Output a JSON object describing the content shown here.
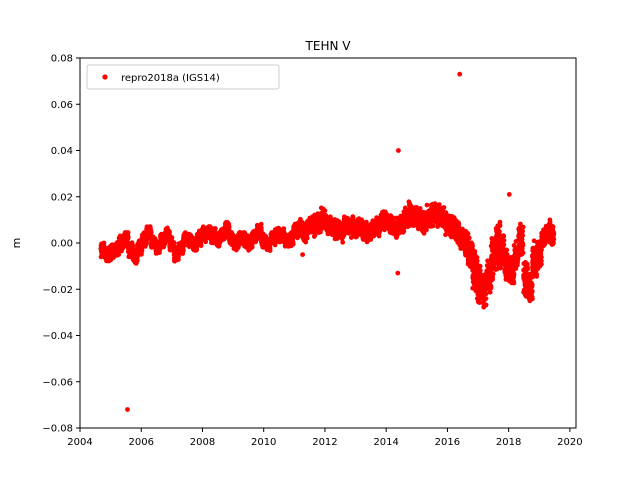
{
  "chart_data": {
    "type": "scatter",
    "title": "TEHN V",
    "xlabel": "",
    "ylabel": "m",
    "xlim": [
      2004.0,
      2020.2
    ],
    "ylim": [
      -0.08,
      0.08
    ],
    "x_ticks": [
      2004,
      2006,
      2008,
      2010,
      2012,
      2014,
      2016,
      2018,
      2020
    ],
    "y_ticks": [
      -0.08,
      -0.06,
      -0.04,
      -0.02,
      0.0,
      0.02,
      0.04,
      0.06,
      0.08
    ],
    "y_tick_labels": [
      "−0.08",
      "−0.06",
      "−0.04",
      "−0.02",
      "0.00",
      "0.02",
      "0.04",
      "0.06",
      "0.08"
    ],
    "grid": false,
    "legend_position": "top-left",
    "series": [
      {
        "name": "repro2018a (IGS14)",
        "color": "#ff0000",
        "marker": "circle",
        "x": [
          2004.75,
          2004.9,
          2005.05,
          2005.2,
          2005.35,
          2005.5,
          2005.65,
          2005.8,
          2005.95,
          2006.1,
          2006.25,
          2006.4,
          2006.55,
          2006.7,
          2006.85,
          2007.0,
          2007.15,
          2007.3,
          2007.45,
          2007.6,
          2007.75,
          2007.9,
          2008.05,
          2008.2,
          2008.35,
          2008.5,
          2008.65,
          2008.8,
          2008.95,
          2009.1,
          2009.25,
          2009.4,
          2009.55,
          2009.7,
          2009.85,
          2010.0,
          2010.15,
          2010.3,
          2010.45,
          2010.6,
          2010.75,
          2010.9,
          2011.05,
          2011.2,
          2011.35,
          2011.5,
          2011.65,
          2011.8,
          2011.95,
          2012.1,
          2012.25,
          2012.4,
          2012.55,
          2012.7,
          2012.85,
          2013.0,
          2013.15,
          2013.3,
          2013.45,
          2013.6,
          2013.75,
          2013.9,
          2014.05,
          2014.2,
          2014.35,
          2014.5,
          2014.65,
          2014.8,
          2014.95,
          2015.1,
          2015.25,
          2015.4,
          2015.55,
          2015.7,
          2015.85,
          2016.0,
          2016.15,
          2016.3,
          2016.45,
          2016.6,
          2016.75,
          2016.9,
          2017.05,
          2017.2,
          2017.35,
          2017.5,
          2017.65,
          2017.8,
          2017.95,
          2018.1,
          2018.25,
          2018.4,
          2018.55,
          2018.7,
          2018.85,
          2019.0,
          2019.15,
          2019.3,
          2019.4,
          2005.55,
          2014.4,
          2014.38,
          2016.4,
          2018.02,
          2011.27
        ],
        "y": [
          -0.003,
          -0.005,
          -0.004,
          -0.002,
          0.0,
          0.002,
          -0.003,
          -0.006,
          -0.002,
          0.001,
          0.004,
          0.0,
          -0.002,
          0.001,
          0.003,
          -0.001,
          -0.005,
          -0.002,
          0.002,
          0.001,
          -0.001,
          0.002,
          0.004,
          0.005,
          0.003,
          0.001,
          0.004,
          0.006,
          0.002,
          0.0,
          0.002,
          0.001,
          0.0,
          0.003,
          0.005,
          0.001,
          -0.001,
          0.002,
          0.004,
          0.003,
          0.001,
          0.002,
          0.005,
          0.006,
          0.004,
          0.007,
          0.008,
          0.009,
          0.01,
          0.008,
          0.007,
          0.006,
          0.005,
          0.008,
          0.007,
          0.006,
          0.007,
          0.005,
          0.004,
          0.006,
          0.008,
          0.01,
          0.009,
          0.007,
          0.006,
          0.008,
          0.011,
          0.013,
          0.012,
          0.01,
          0.009,
          0.011,
          0.013,
          0.012,
          0.01,
          0.008,
          0.007,
          0.005,
          0.003,
          0.0,
          -0.005,
          -0.012,
          -0.018,
          -0.02,
          -0.015,
          -0.005,
          0.0,
          -0.004,
          -0.01,
          -0.012,
          -0.006,
          0.002,
          -0.015,
          -0.02,
          -0.008,
          -0.005,
          0.002,
          0.005,
          0.004,
          -0.072,
          0.04,
          -0.013,
          0.073,
          0.021,
          -0.005
        ],
        "spread": [
          0.004,
          0.004,
          0.004,
          0.004,
          0.004,
          0.004,
          0.004,
          0.004,
          0.004,
          0.004,
          0.004,
          0.004,
          0.004,
          0.004,
          0.004,
          0.004,
          0.004,
          0.004,
          0.004,
          0.004,
          0.004,
          0.004,
          0.004,
          0.004,
          0.004,
          0.004,
          0.004,
          0.004,
          0.004,
          0.004,
          0.004,
          0.004,
          0.004,
          0.004,
          0.004,
          0.004,
          0.004,
          0.004,
          0.004,
          0.004,
          0.004,
          0.004,
          0.004,
          0.005,
          0.005,
          0.005,
          0.006,
          0.006,
          0.006,
          0.005,
          0.005,
          0.005,
          0.005,
          0.005,
          0.005,
          0.005,
          0.005,
          0.005,
          0.005,
          0.005,
          0.006,
          0.006,
          0.005,
          0.005,
          0.005,
          0.005,
          0.006,
          0.007,
          0.006,
          0.006,
          0.006,
          0.006,
          0.007,
          0.006,
          0.006,
          0.006,
          0.006,
          0.006,
          0.006,
          0.007,
          0.009,
          0.011,
          0.011,
          0.011,
          0.011,
          0.013,
          0.012,
          0.009,
          0.008,
          0.009,
          0.009,
          0.01,
          0.01,
          0.009,
          0.01,
          0.009,
          0.006,
          0.006,
          0.006,
          0.0,
          0.0,
          0.0,
          0.0,
          0.0,
          0.0
        ]
      }
    ]
  }
}
